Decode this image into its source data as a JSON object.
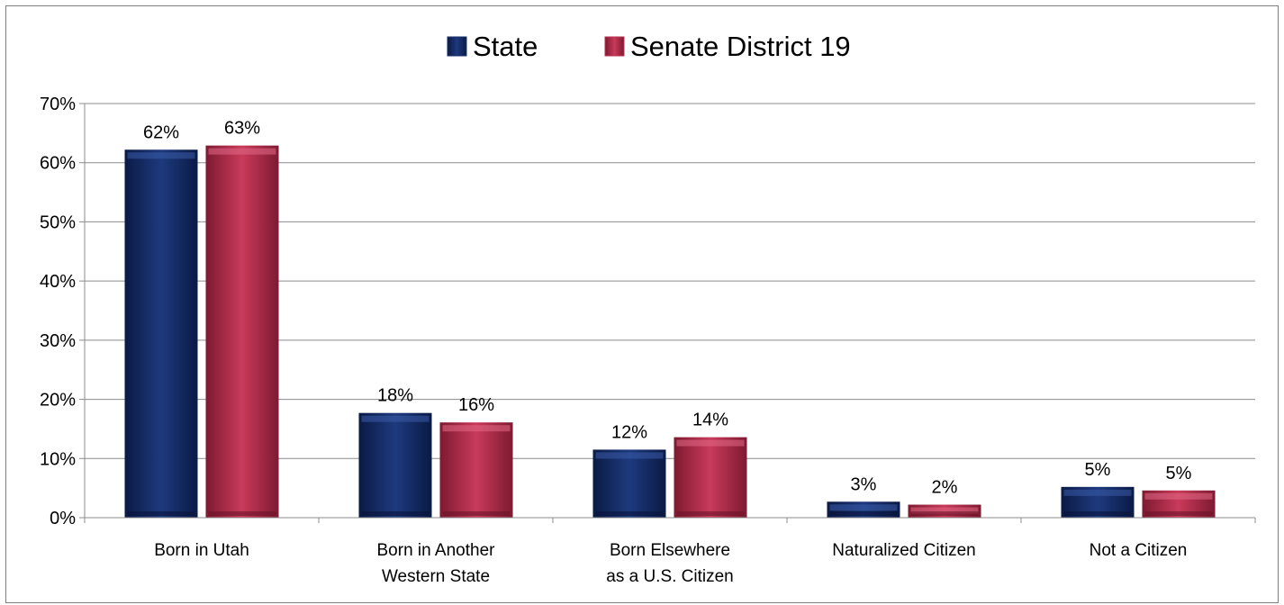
{
  "chart_data": {
    "type": "bar",
    "title": "",
    "xlabel": "",
    "ylabel": "",
    "categories": [
      [
        "Born in Utah"
      ],
      [
        "Born in Another",
        "Western State"
      ],
      [
        "Born Elsewhere",
        "as a U.S. Citizen"
      ],
      [
        "Naturalized Citizen"
      ],
      [
        "Not a Citizen"
      ]
    ],
    "series": [
      {
        "name": "State",
        "color": "#17306b",
        "values": [
          62.2,
          17.7,
          11.5,
          2.7,
          5.2
        ],
        "labels": [
          "62%",
          "18%",
          "12%",
          "3%",
          "5%"
        ]
      },
      {
        "name": "Senate District 19",
        "color": "#b8314f",
        "values": [
          62.9,
          16.1,
          13.6,
          2.2,
          4.6
        ],
        "labels": [
          "63%",
          "16%",
          "14%",
          "2%",
          "5%"
        ]
      }
    ],
    "yticks": [
      0,
      10,
      20,
      30,
      40,
      50,
      60,
      70
    ],
    "ytick_labels": [
      "0%",
      "10%",
      "20%",
      "30%",
      "40%",
      "50%",
      "60%",
      "70%"
    ],
    "ylim": [
      0,
      70
    ],
    "grid": true,
    "legend_position": "top-center"
  }
}
